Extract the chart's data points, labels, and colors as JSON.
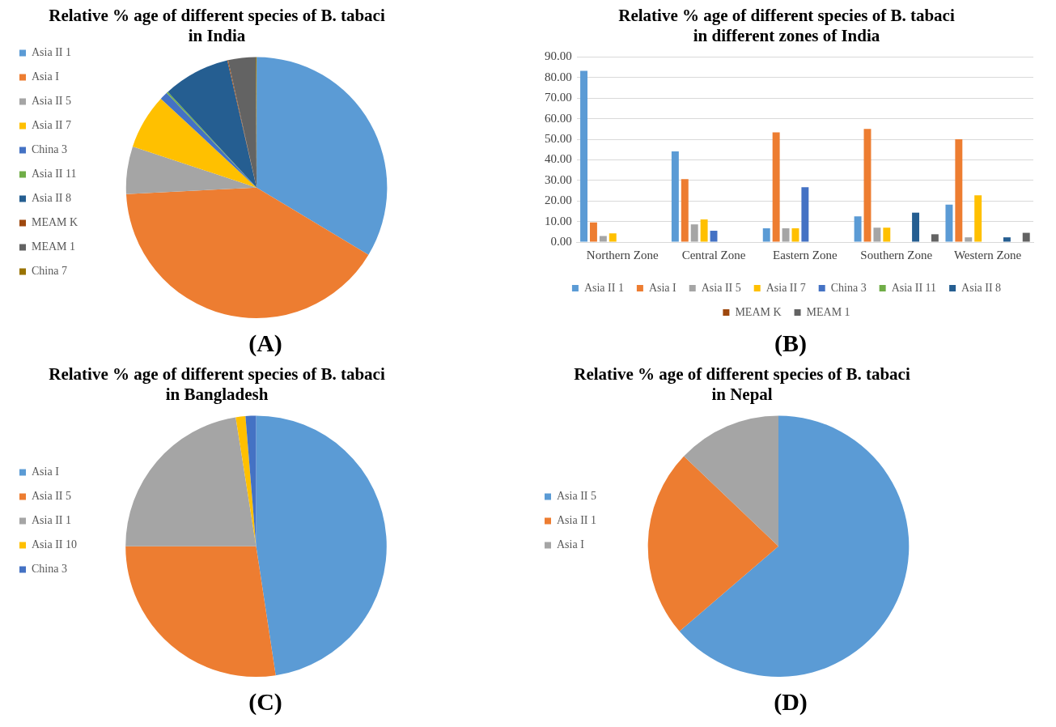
{
  "chart_data": [
    {
      "type": "pie",
      "title": "Relative % age of different species of B. tabaci\nin India",
      "categories": [
        "Asia II 1",
        "Asia I",
        "Asia II 5",
        "Asia II 7",
        "China 3",
        "Asia II 11",
        "Asia II 8",
        "MEAM K",
        "MEAM 1",
        "China 7"
      ],
      "values": [
        33.6,
        40.6,
        5.9,
        6.8,
        1.0,
        0.2,
        8.3,
        0.1,
        3.4,
        0.1
      ],
      "colors": [
        "#5b9bd5",
        "#ed7d31",
        "#a5a5a5",
        "#ffc000",
        "#4472c4",
        "#70ad47",
        "#255e91",
        "#9e480e",
        "#636363",
        "#997300"
      ],
      "legend": "left",
      "annotations": [
        "(A)"
      ]
    },
    {
      "type": "bar",
      "title": "Relative % age of different species of B. tabaci\nin different zones of India",
      "categories": [
        "Northern Zone",
        "Central Zone",
        "Eastern Zone",
        "Southern Zone",
        "Western Zone"
      ],
      "series": [
        {
          "name": "Asia II 1",
          "color": "#5b9bd5",
          "values": [
            83.3,
            44.1,
            6.7,
            12.5,
            18.2
          ]
        },
        {
          "name": "Asia I",
          "color": "#ed7d31",
          "values": [
            9.5,
            30.6,
            53.3,
            55.0,
            50.0
          ]
        },
        {
          "name": "Asia II 5",
          "color": "#a5a5a5",
          "values": [
            3.0,
            8.6,
            6.7,
            7.0,
            2.3
          ]
        },
        {
          "name": "Asia II 7",
          "color": "#ffc000",
          "values": [
            4.2,
            11.0,
            6.7,
            7.0,
            22.7
          ]
        },
        {
          "name": "China 3",
          "color": "#4472c4",
          "values": [
            0,
            5.5,
            26.7,
            0,
            0
          ]
        },
        {
          "name": "Asia II 11",
          "color": "#70ad47",
          "values": [
            0,
            0,
            0,
            0,
            0
          ]
        },
        {
          "name": "Asia II 8",
          "color": "#255e91",
          "values": [
            0,
            0,
            0,
            14.3,
            2.3
          ]
        },
        {
          "name": "MEAM K",
          "color": "#9e480e",
          "values": [
            0,
            0,
            0,
            0,
            0
          ]
        },
        {
          "name": "MEAM 1",
          "color": "#636363",
          "values": [
            0,
            0,
            0,
            3.8,
            4.5
          ]
        }
      ],
      "ylim": [
        0,
        90
      ],
      "yticks": [
        {
          "value": 0,
          "label": "0.00"
        },
        {
          "value": 10,
          "label": "10.00"
        },
        {
          "value": 20,
          "label": "20.00"
        },
        {
          "value": 30,
          "label": "30.00"
        },
        {
          "value": 40,
          "label": "40.00"
        },
        {
          "value": 50,
          "label": "50.00"
        },
        {
          "value": 60,
          "label": "60.00"
        },
        {
          "value": 70,
          "label": "70.00"
        },
        {
          "value": 80,
          "label": "80.00"
        },
        {
          "value": 90,
          "label": "90.00"
        }
      ],
      "grid": "y",
      "legend": "bottom",
      "annotations": [
        "(B)"
      ]
    },
    {
      "type": "pie",
      "title": "Relative % age of different species of B. tabaci\nin Bangladesh",
      "categories": [
        "Asia I",
        "Asia II 5",
        "Asia II 1",
        "Asia II 10",
        "China 3"
      ],
      "values": [
        47.6,
        27.4,
        22.5,
        1.2,
        1.3
      ],
      "colors": [
        "#5b9bd5",
        "#ed7d31",
        "#a5a5a5",
        "#ffc000",
        "#4472c4"
      ],
      "legend": "left",
      "annotations": [
        "(C)"
      ]
    },
    {
      "type": "pie",
      "title": "Relative % age of different species of B. tabaci\nin Nepal",
      "categories": [
        "Asia II 5",
        "Asia II 1",
        "Asia I"
      ],
      "values": [
        63.7,
        23.4,
        12.9
      ],
      "colors": [
        "#5b9bd5",
        "#ed7d31",
        "#a5a5a5"
      ],
      "legend": "left",
      "annotations": [
        "(D)"
      ]
    }
  ]
}
